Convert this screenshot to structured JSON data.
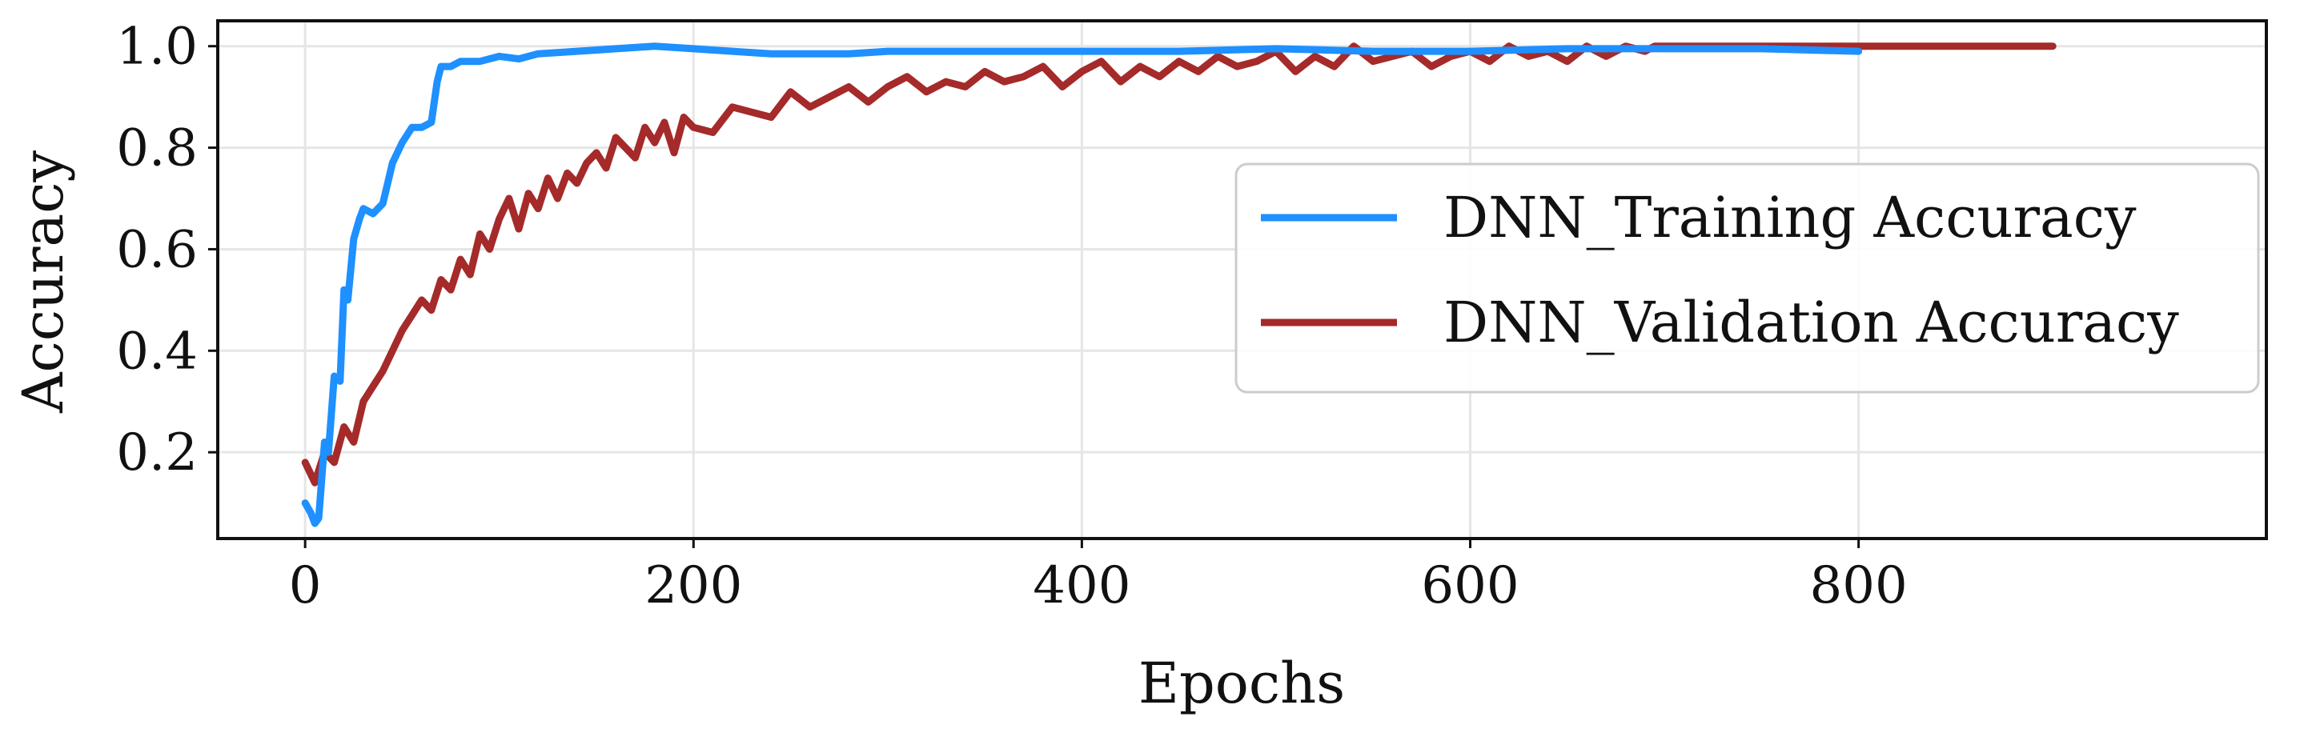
{
  "chart_data": {
    "type": "line",
    "title": "",
    "xlabel": "Epochs",
    "ylabel": "Accuracy",
    "xlim": [
      -45,
      1010
    ],
    "ylim": [
      0.03,
      1.05
    ],
    "x_ticks": [
      0,
      200,
      400,
      600,
      800
    ],
    "x_tick_labels": [
      "0",
      "200",
      "400",
      "600",
      "800"
    ],
    "y_ticks": [
      0.2,
      0.4,
      0.6,
      0.8,
      1.0
    ],
    "y_tick_labels": [
      "0.2",
      "0.4",
      "0.6",
      "0.8",
      "1.0"
    ],
    "grid": true,
    "legend_position": "center-right",
    "series": [
      {
        "name": "DNN_Training Accuracy",
        "color": "#1e90ff",
        "x": [
          0,
          3,
          5,
          7,
          10,
          12,
          15,
          18,
          20,
          22,
          25,
          28,
          30,
          35,
          40,
          45,
          50,
          55,
          60,
          65,
          68,
          70,
          75,
          80,
          90,
          100,
          110,
          120,
          140,
          160,
          180,
          200,
          220,
          240,
          260,
          280,
          300,
          350,
          400,
          450,
          500,
          550,
          600,
          650,
          700,
          750,
          800
        ],
        "values": [
          0.1,
          0.08,
          0.06,
          0.07,
          0.22,
          0.2,
          0.35,
          0.34,
          0.52,
          0.5,
          0.62,
          0.66,
          0.68,
          0.67,
          0.69,
          0.77,
          0.81,
          0.84,
          0.84,
          0.85,
          0.93,
          0.96,
          0.96,
          0.97,
          0.97,
          0.98,
          0.975,
          0.985,
          0.99,
          0.995,
          1.0,
          0.995,
          0.99,
          0.985,
          0.985,
          0.985,
          0.99,
          0.99,
          0.99,
          0.99,
          0.995,
          0.99,
          0.99,
          0.995,
          0.995,
          0.995,
          0.99
        ]
      },
      {
        "name": "DNN_Validation Accuracy",
        "color": "#a52a2a",
        "x": [
          0,
          5,
          10,
          15,
          20,
          25,
          30,
          35,
          40,
          45,
          50,
          55,
          60,
          65,
          70,
          75,
          80,
          85,
          90,
          95,
          100,
          105,
          110,
          115,
          120,
          125,
          130,
          135,
          140,
          145,
          150,
          155,
          160,
          165,
          170,
          175,
          180,
          185,
          190,
          195,
          200,
          210,
          220,
          230,
          240,
          250,
          260,
          270,
          280,
          290,
          300,
          310,
          320,
          330,
          340,
          350,
          360,
          370,
          380,
          390,
          400,
          410,
          420,
          430,
          440,
          450,
          460,
          470,
          480,
          490,
          500,
          510,
          520,
          530,
          540,
          550,
          560,
          570,
          580,
          590,
          600,
          610,
          620,
          630,
          640,
          650,
          660,
          670,
          680,
          690,
          695,
          700,
          750,
          800,
          850,
          900
        ],
        "values": [
          0.18,
          0.14,
          0.2,
          0.18,
          0.25,
          0.22,
          0.3,
          0.33,
          0.36,
          0.4,
          0.44,
          0.47,
          0.5,
          0.48,
          0.54,
          0.52,
          0.58,
          0.55,
          0.63,
          0.6,
          0.66,
          0.7,
          0.64,
          0.71,
          0.68,
          0.74,
          0.7,
          0.75,
          0.73,
          0.77,
          0.79,
          0.76,
          0.82,
          0.8,
          0.78,
          0.84,
          0.81,
          0.85,
          0.79,
          0.86,
          0.84,
          0.83,
          0.88,
          0.87,
          0.86,
          0.91,
          0.88,
          0.9,
          0.92,
          0.89,
          0.92,
          0.94,
          0.91,
          0.93,
          0.92,
          0.95,
          0.93,
          0.94,
          0.96,
          0.92,
          0.95,
          0.97,
          0.93,
          0.96,
          0.94,
          0.97,
          0.95,
          0.98,
          0.96,
          0.97,
          0.99,
          0.95,
          0.98,
          0.96,
          1.0,
          0.97,
          0.98,
          0.99,
          0.96,
          0.98,
          0.99,
          0.97,
          1.0,
          0.98,
          0.99,
          0.97,
          1.0,
          0.98,
          1.0,
          0.99,
          1.0,
          1.0,
          1.0,
          1.0,
          1.0,
          1.0
        ]
      }
    ]
  }
}
